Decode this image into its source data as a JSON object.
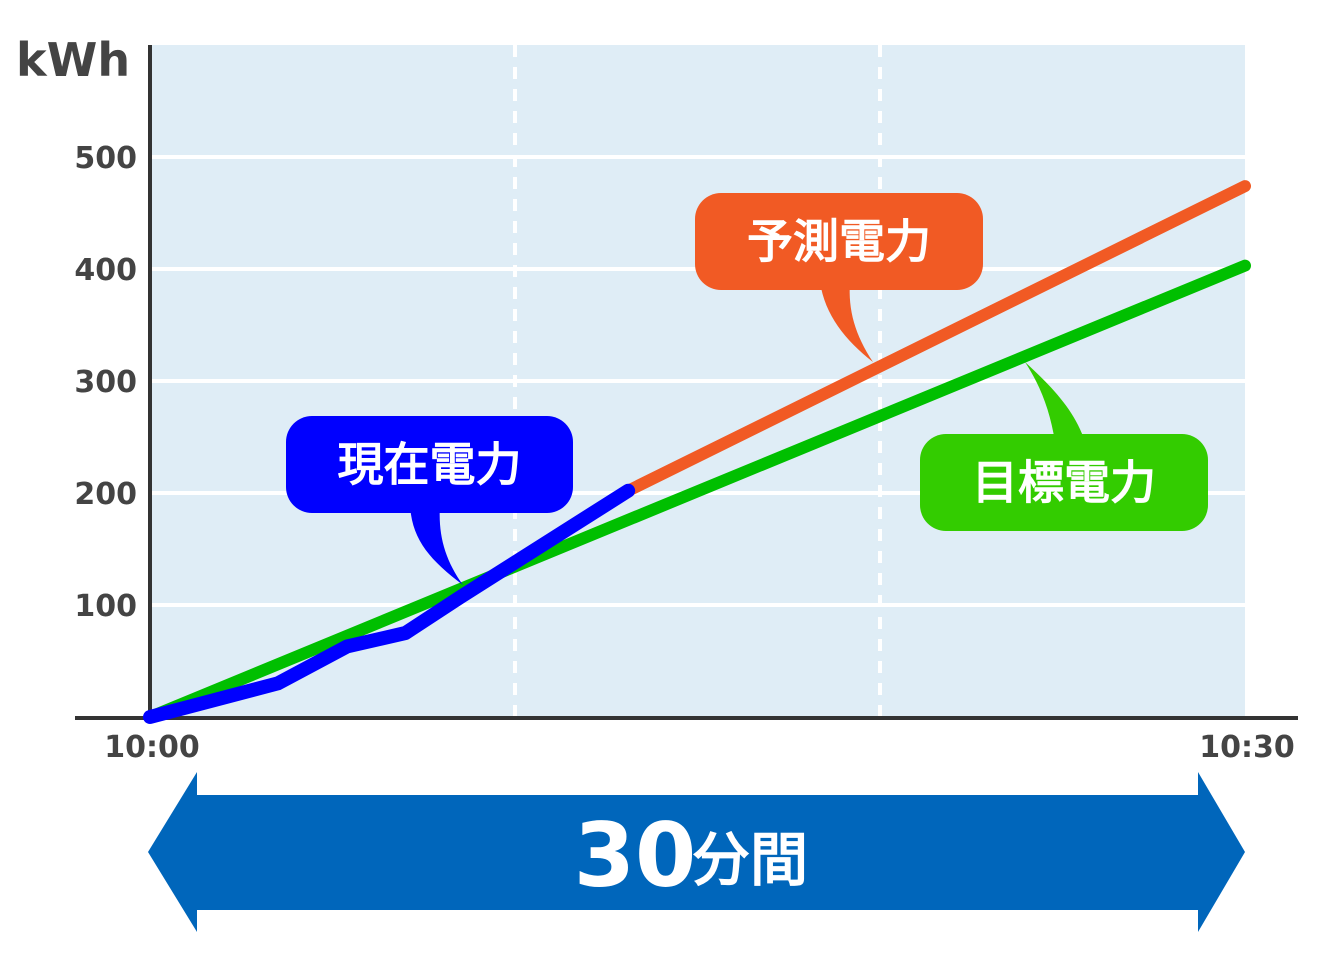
{
  "chart_data": {
    "type": "line",
    "ylabel": "kWh",
    "ylim": [
      0,
      600
    ],
    "yticks": [
      100,
      200,
      300,
      400,
      500
    ],
    "xlim": [
      "10:00:00",
      "10:30:00"
    ],
    "xtick_labels": [
      "10:00",
      "10:30"
    ],
    "grid": "horizontal solid, vertical dashed at 10:10 and 10:20",
    "series": [
      {
        "name": "目標電力",
        "color": "#00bf00",
        "x": [
          "10:00:00",
          "10:30:00"
        ],
        "y": [
          0,
          403
        ]
      },
      {
        "name": "予測電力",
        "color": "#f15a24",
        "x": [
          "10:13:06",
          "10:30:00"
        ],
        "y": [
          202,
          474
        ]
      },
      {
        "name": "現在電力",
        "color": "#0000ff",
        "x": [
          "10:00:00",
          "10:03:30",
          "10:05:24",
          "10:07:00",
          "10:08:30",
          "10:13:06"
        ],
        "y": [
          0,
          30,
          63,
          75,
          107,
          202
        ]
      }
    ],
    "callout_colors": {
      "現在電力": "#0000ff",
      "予測電力": "#f15a24",
      "目標電力": "#33cc00"
    },
    "duration_arrow": {
      "number": "30",
      "unit": "分間",
      "color": "#0066bb"
    },
    "background_color": "#dfedf6"
  }
}
